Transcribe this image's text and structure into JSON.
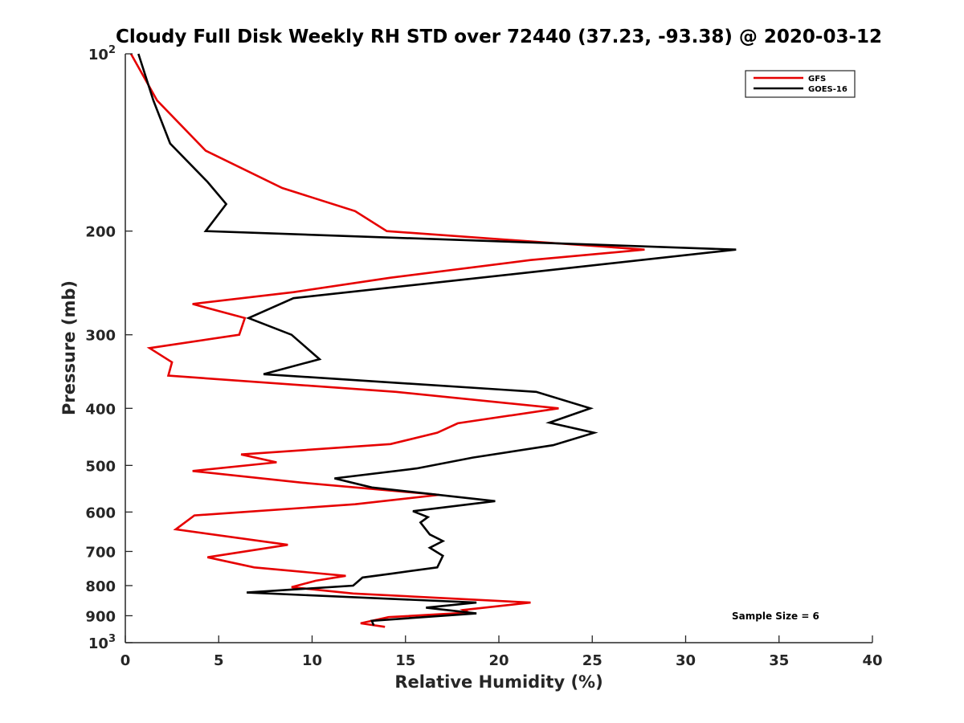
{
  "chart_data": {
    "type": "line",
    "title": "Cloudy Full Disk Weekly RH STD over 72440 (37.23, -93.38) @ 2020-03-12",
    "xlabel": "Relative Humidity (%)",
    "ylabel": "Pressure (mb)",
    "xlim": [
      0,
      40
    ],
    "ylim": [
      100,
      1000
    ],
    "y_scale": "log",
    "y_reversed": true,
    "x_ticks": [
      0,
      5,
      10,
      15,
      20,
      25,
      30,
      35,
      40
    ],
    "x_tick_labels": [
      "0",
      "5",
      "10",
      "15",
      "20",
      "25",
      "30",
      "35",
      "40"
    ],
    "y_ticks": [
      {
        "value": 100,
        "label": "10",
        "sup": "2"
      },
      {
        "value": 200,
        "label": "200",
        "sup": ""
      },
      {
        "value": 300,
        "label": "300",
        "sup": ""
      },
      {
        "value": 400,
        "label": "400",
        "sup": ""
      },
      {
        "value": 500,
        "label": "500",
        "sup": ""
      },
      {
        "value": 600,
        "label": "600",
        "sup": ""
      },
      {
        "value": 700,
        "label": "700",
        "sup": ""
      },
      {
        "value": 800,
        "label": "800",
        "sup": ""
      },
      {
        "value": 900,
        "label": "900",
        "sup": ""
      },
      {
        "value": 1000,
        "label": "10",
        "sup": "3"
      }
    ],
    "grid": false,
    "legend_position": "top-right",
    "annotation": "Sample Size = 6",
    "series": [
      {
        "name": "GFS",
        "color": "#e60000",
        "points": [
          [
            0.3,
            100
          ],
          [
            1.7,
            120
          ],
          [
            4.3,
            146
          ],
          [
            8.4,
            169
          ],
          [
            12.3,
            185
          ],
          [
            14.0,
            200
          ],
          [
            27.8,
            215
          ],
          [
            21.7,
            224
          ],
          [
            14.2,
            240
          ],
          [
            9.0,
            254
          ],
          [
            3.6,
            266
          ],
          [
            6.4,
            281
          ],
          [
            6.1,
            300
          ],
          [
            1.3,
            316
          ],
          [
            2.5,
            334
          ],
          [
            2.3,
            352
          ],
          [
            14.5,
            375
          ],
          [
            23.2,
            400
          ],
          [
            17.8,
            424
          ],
          [
            16.7,
            440
          ],
          [
            14.2,
            460
          ],
          [
            6.2,
            479
          ],
          [
            8.1,
            494
          ],
          [
            3.6,
            511
          ],
          [
            9.5,
            535
          ],
          [
            16.8,
            561
          ],
          [
            12.3,
            582
          ],
          [
            3.7,
            608
          ],
          [
            2.7,
            642
          ],
          [
            8.7,
            682
          ],
          [
            4.4,
            716
          ],
          [
            6.9,
            745
          ],
          [
            11.8,
            770
          ],
          [
            10.2,
            785
          ],
          [
            8.9,
            805
          ],
          [
            12.2,
            825
          ],
          [
            21.7,
            855
          ],
          [
            18.1,
            880
          ],
          [
            18.4,
            889
          ],
          [
            14.1,
            905
          ],
          [
            12.6,
            927
          ],
          [
            13.9,
            940
          ]
        ]
      },
      {
        "name": "GOES-16",
        "color": "#000000",
        "points": [
          [
            0.7,
            100
          ],
          [
            1.5,
            120
          ],
          [
            2.4,
            142
          ],
          [
            4.4,
            165
          ],
          [
            5.4,
            180
          ],
          [
            4.3,
            200
          ],
          [
            32.7,
            215
          ],
          [
            22.7,
            233
          ],
          [
            9.0,
            260
          ],
          [
            6.6,
            281
          ],
          [
            8.9,
            300
          ],
          [
            10.4,
            330
          ],
          [
            7.4,
            350
          ],
          [
            22.0,
            375
          ],
          [
            24.9,
            400
          ],
          [
            22.7,
            423
          ],
          [
            25.1,
            440
          ],
          [
            22.9,
            462
          ],
          [
            18.6,
            485
          ],
          [
            15.6,
            506
          ],
          [
            11.2,
            526
          ],
          [
            13.2,
            545
          ],
          [
            19.8,
            575
          ],
          [
            15.4,
            598
          ],
          [
            16.2,
            612
          ],
          [
            15.8,
            625
          ],
          [
            16.3,
            655
          ],
          [
            17.0,
            672
          ],
          [
            16.3,
            690
          ],
          [
            17.0,
            712
          ],
          [
            16.7,
            745
          ],
          [
            14.3,
            763
          ],
          [
            12.7,
            775
          ],
          [
            12.2,
            800
          ],
          [
            6.5,
            822
          ],
          [
            18.8,
            855
          ],
          [
            16.1,
            872
          ],
          [
            18.8,
            892
          ],
          [
            13.2,
            918
          ],
          [
            13.3,
            935
          ]
        ]
      }
    ]
  }
}
